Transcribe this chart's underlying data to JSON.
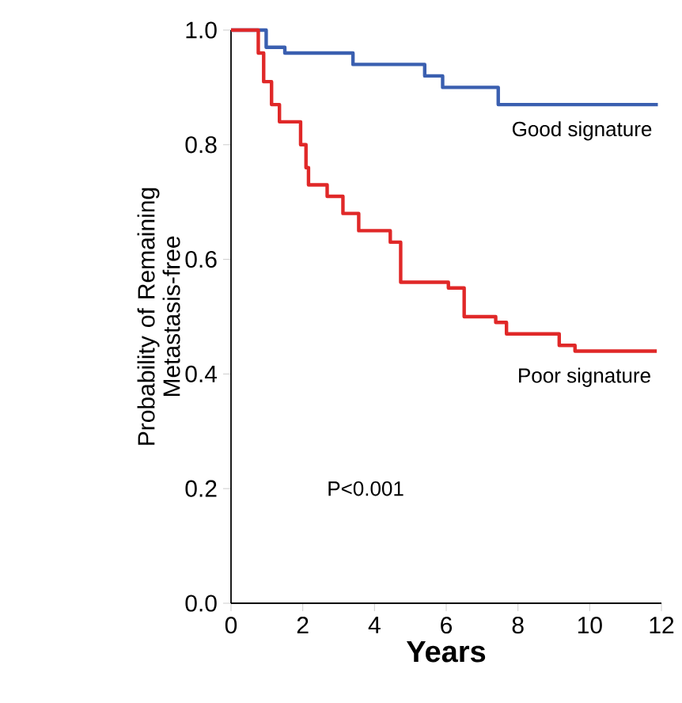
{
  "chart_data": {
    "type": "step",
    "xlabel": "**Years**",
    "ylabel": "Probability of Remaining Metastasis-free",
    "xlim": [
      0,
      12
    ],
    "ylim": [
      0,
      1
    ],
    "xticks": [
      0,
      2,
      4,
      6,
      8,
      10,
      12
    ],
    "yticks": [
      {
        "value": 0,
        "label": "0.0"
      },
      {
        "value": 0.2,
        "label": "0.2"
      },
      {
        "value": 0.4,
        "label": "0.4"
      },
      {
        "value": 0.6,
        "label": "0.6"
      },
      {
        "value": 0.8,
        "label": "0.8"
      },
      {
        "value": 1,
        "label": "1.0"
      }
    ],
    "series": [
      {
        "name": "Good signature",
        "color": "#3a5fb0",
        "x": [
          0,
          0.98,
          1.5,
          3.4,
          5.4,
          5.9,
          7.45,
          11.9
        ],
        "values": [
          1.0,
          0.97,
          0.96,
          0.94,
          0.92,
          0.9,
          0.87,
          0.87
        ]
      },
      {
        "name": "Poor signature",
        "color": "#e02828",
        "x": [
          0,
          0.76,
          0.91,
          1.13,
          1.35,
          1.94,
          2.09,
          2.16,
          2.68,
          3.12,
          3.56,
          4.44,
          4.73,
          6.06,
          6.5,
          7.38,
          7.68,
          9.15,
          9.59,
          11.87
        ],
        "values": [
          1.0,
          0.96,
          0.91,
          0.87,
          0.84,
          0.8,
          0.76,
          0.73,
          0.71,
          0.68,
          0.65,
          0.63,
          0.56,
          0.55,
          0.5,
          0.49,
          0.47,
          0.45,
          0.44,
          0.44
        ]
      }
    ],
    "annotations": [
      "P<0.001"
    ],
    "grid": false,
    "legend": false,
    "marker": "none",
    "line_style": "solid"
  }
}
